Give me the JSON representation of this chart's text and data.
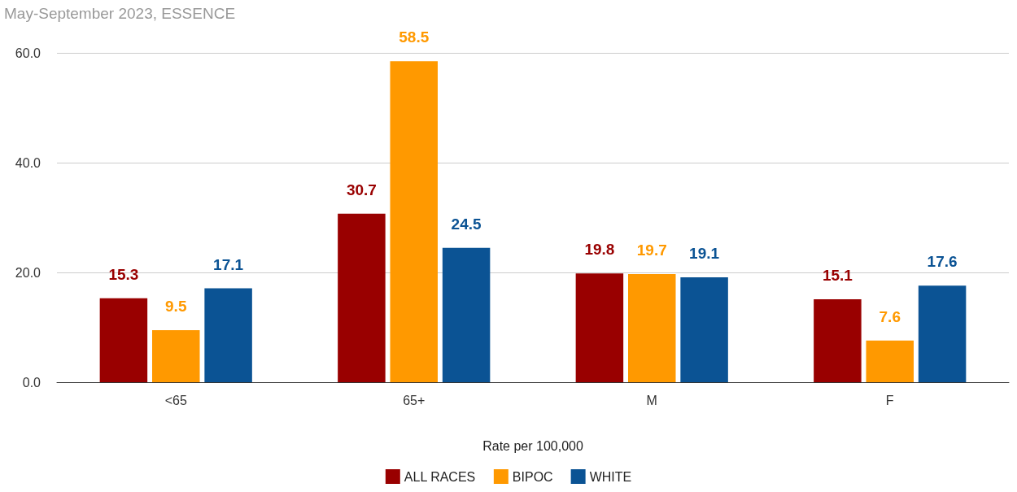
{
  "chart_data": {
    "type": "bar",
    "title": "May-September 2023, ESSENCE",
    "xlabel": "Rate per 100,000",
    "categories": [
      "<65",
      "65+",
      "M",
      "F"
    ],
    "series": [
      {
        "name": "ALL RACES",
        "color": "#990000",
        "values": [
          15.3,
          30.7,
          19.8,
          15.1
        ]
      },
      {
        "name": "BIPOC",
        "color": "#ff9900",
        "values": [
          9.5,
          58.5,
          19.7,
          7.6
        ]
      },
      {
        "name": "WHITE",
        "color": "#0b5394",
        "values": [
          17.1,
          24.5,
          19.1,
          17.6
        ]
      }
    ],
    "ylim": [
      0,
      60
    ],
    "yticks": [
      {
        "value": 0,
        "label": "0.0"
      },
      {
        "value": 20,
        "label": "20.0"
      },
      {
        "value": 40,
        "label": "40.0"
      },
      {
        "value": 60,
        "label": "60.0"
      }
    ],
    "grid": "y",
    "legend": "bottom",
    "data_labels": true
  }
}
